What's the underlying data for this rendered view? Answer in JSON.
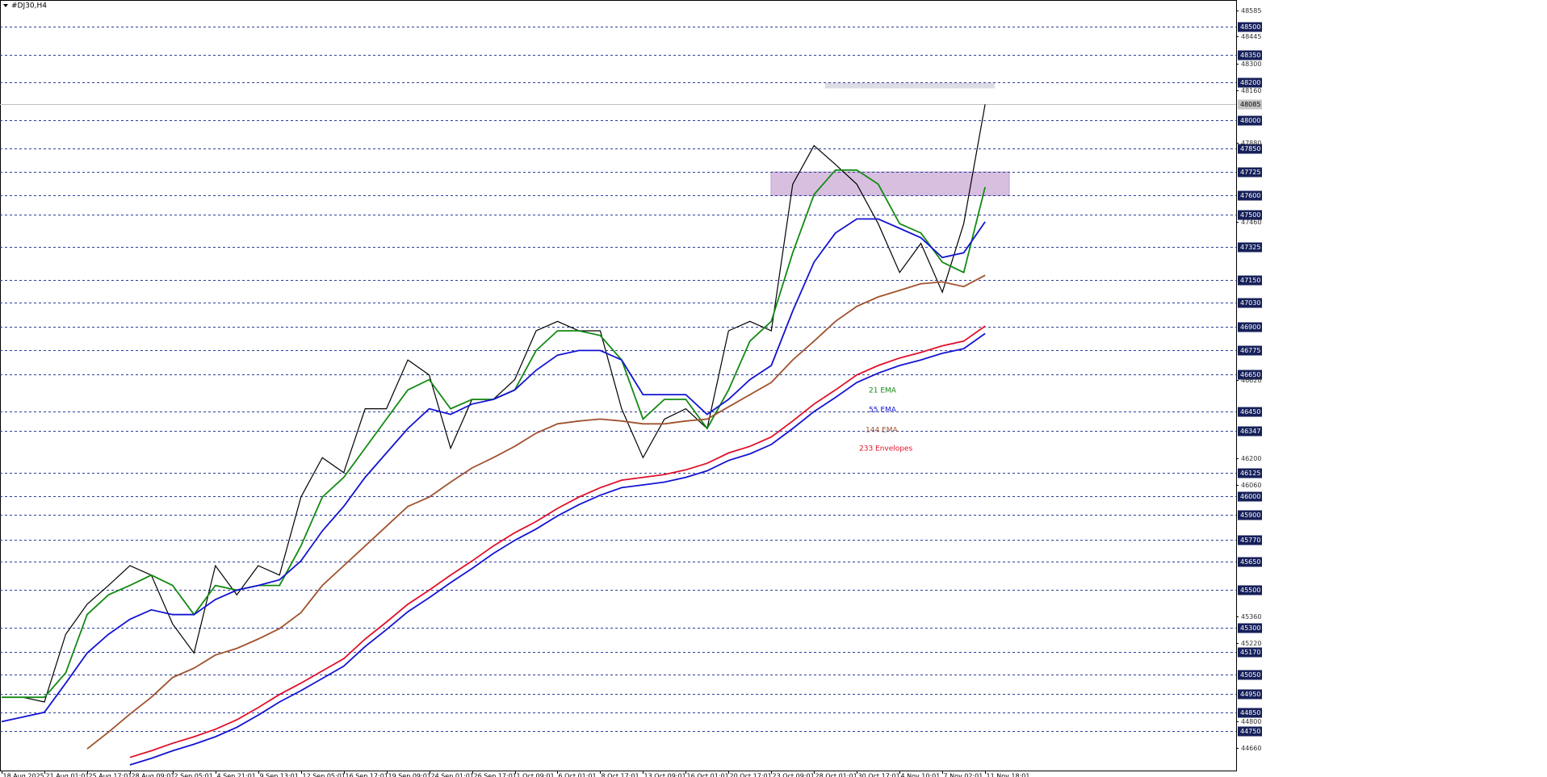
{
  "chart_data": {
    "type": "line",
    "title": "#DJ30,H4",
    "categories": [
      "18 Aug 2025",
      null,
      "21 Aug 01:01",
      null,
      "25 Aug 17:01",
      null,
      "28 Aug 09:01",
      null,
      "2 Sep 05:01",
      null,
      "4 Sep 21:01",
      null,
      "9 Sep 13:01",
      null,
      "12 Sep 05:01",
      null,
      "16 Sep 17:01",
      null,
      "19 Sep 09:01",
      null,
      "24 Sep 01:01",
      null,
      "26 Sep 17:01",
      null,
      "1 Oct 09:01",
      null,
      "6 Oct 01:01",
      null,
      "8 Oct 17:01",
      null,
      "13 Oct 09:01",
      null,
      "16 Oct 01:01",
      null,
      "20 Oct 17:01",
      null,
      "23 Oct 09:01",
      null,
      "28 Oct 01:01",
      null,
      "30 Oct 17:01",
      null,
      "4 Nov 10:01",
      null,
      "7 Nov 02:01",
      null,
      "11 Nov 18:01"
    ],
    "series": [
      {
        "color": "#000000",
        "values": [
          44930,
          44930,
          44905,
          45265,
          45425,
          45525,
          45630,
          45580,
          45320,
          45165,
          45630,
          45475,
          45630,
          45580,
          45995,
          46205,
          46125,
          46465,
          46465,
          46725,
          46645,
          46255,
          46515,
          46515,
          46620,
          46880,
          46930,
          46880,
          46880,
          46465,
          46205,
          46410,
          46465,
          46360,
          46880,
          46930,
          46880,
          47660,
          47865,
          47765,
          47660,
          47450,
          47190,
          47345,
          47085,
          47450,
          48085
        ]
      },
      {
        "name": "21 EMA",
        "color": "#138a13",
        "values": [
          44930,
          44930,
          44930,
          45060,
          45370,
          45475,
          45525,
          45580,
          45525,
          45370,
          45525,
          45500,
          45525,
          45525,
          45735,
          45995,
          46100,
          46255,
          46410,
          46565,
          46620,
          46465,
          46515,
          46515,
          46565,
          46775,
          46880,
          46880,
          46855,
          46725,
          46410,
          46515,
          46515,
          46360,
          46565,
          46825,
          46930,
          47295,
          47605,
          47735,
          47735,
          47660,
          47450,
          47400,
          47245,
          47190,
          47645
        ]
      },
      {
        "name": "55 EMA",
        "color": "#1414d2",
        "values": [
          44800,
          44825,
          44850,
          45005,
          45165,
          45265,
          45345,
          45395,
          45370,
          45370,
          45450,
          45500,
          45525,
          45555,
          45655,
          45815,
          45945,
          46100,
          46230,
          46360,
          46465,
          46435,
          46490,
          46515,
          46565,
          46670,
          46750,
          46775,
          46775,
          46725,
          46540,
          46540,
          46540,
          46435,
          46515,
          46620,
          46695,
          46985,
          47245,
          47400,
          47475,
          47475,
          47425,
          47375,
          47270,
          47295,
          47460
        ]
      },
      {
        "name": "144 EMA",
        "color": "#a0522d",
        "values": [
          null,
          null,
          null,
          null,
          44655,
          44745,
          44840,
          44930,
          45035,
          45085,
          45155,
          45190,
          45240,
          45295,
          45380,
          45525,
          45630,
          45735,
          45840,
          45945,
          45995,
          46075,
          46150,
          46205,
          46265,
          46335,
          46385,
          46400,
          46410,
          46400,
          46385,
          46385,
          46400,
          46410,
          46475,
          46540,
          46605,
          46725,
          46825,
          46930,
          47010,
          47060,
          47095,
          47130,
          47140,
          47115,
          47175
        ]
      },
      {
        "name": "233 Envelopes",
        "color": "#e0102a",
        "values": [
          null,
          null,
          null,
          null,
          null,
          null,
          44610,
          44645,
          44685,
          44720,
          44760,
          44810,
          44875,
          44945,
          45005,
          45070,
          45135,
          45240,
          45330,
          45425,
          45500,
          45580,
          45655,
          45735,
          45805,
          45865,
          45935,
          45995,
          46045,
          46085,
          46100,
          46115,
          46140,
          46175,
          46230,
          46265,
          46315,
          46400,
          46490,
          46565,
          46645,
          46695,
          46735,
          46765,
          46800,
          46825,
          46905
        ]
      },
      {
        "color": "#1414d2",
        "values": [
          null,
          null,
          null,
          null,
          null,
          null,
          44570,
          44605,
          44645,
          44680,
          44720,
          44770,
          44835,
          44905,
          44965,
          45030,
          45095,
          45200,
          45290,
          45385,
          45460,
          45540,
          45615,
          45695,
          45765,
          45825,
          45895,
          45955,
          46005,
          46045,
          46060,
          46075,
          46100,
          46135,
          46190,
          46225,
          46275,
          46360,
          46450,
          46525,
          46605,
          46655,
          46695,
          46725,
          46760,
          46785,
          46865
        ]
      }
    ],
    "ylim": [
      44540,
      48640
    ],
    "yticks": [
      48585,
      48445,
      48300,
      48160,
      47880,
      47460,
      46620,
      46200,
      46060,
      45360,
      45220,
      44800,
      44660
    ],
    "levels": [
      48500,
      48350,
      48200,
      48000,
      47850,
      47725,
      47600,
      47500,
      47325,
      47150,
      47030,
      46900,
      46775,
      46650,
      46450,
      46347,
      46125,
      46000,
      45900,
      45770,
      45650,
      45500,
      45300,
      45170,
      45050,
      44950,
      44850,
      44750
    ],
    "last_price": 48085,
    "zones": [
      {
        "from": 47600,
        "to": 47725,
        "color": "#d8bfe0"
      },
      {
        "from": 48170,
        "to": 48200,
        "color": "#dcdce6"
      }
    ]
  }
}
